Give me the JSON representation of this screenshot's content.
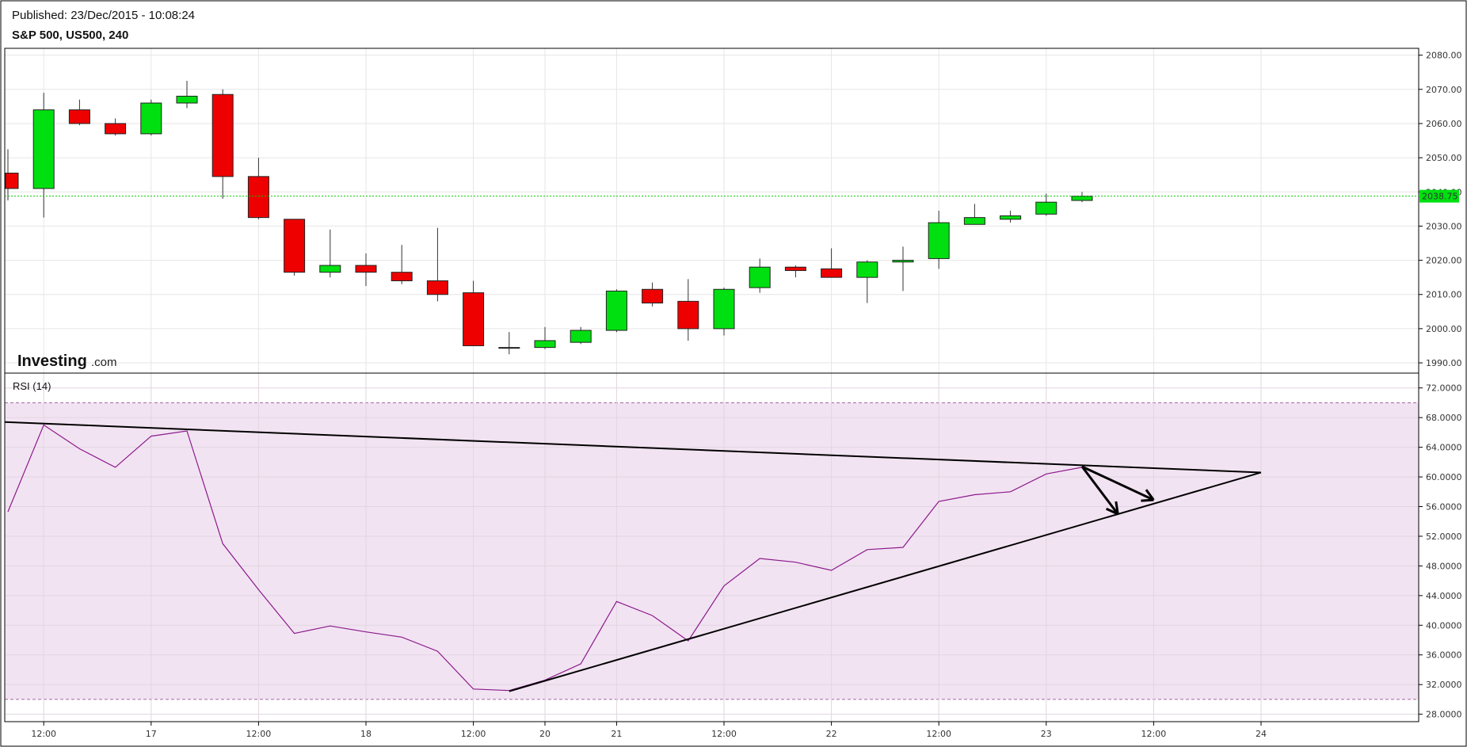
{
  "header": {
    "published": "Published: 23/Dec/2015 - 10:08:24",
    "symbol": "S&P 500, US500, 240"
  },
  "watermark": {
    "text_main": "Investing",
    "text_suffix": ".com"
  },
  "colors": {
    "up": "#00e010",
    "down": "#ee0000",
    "rsi_line": "#8b1a8b",
    "rsi_band": "#f2e3f2",
    "trend_line": "#000000",
    "last_price": "#00cc00"
  },
  "chart_data": [
    {
      "type": "candlestick",
      "title": "S&P 500, US500, 240",
      "ylim": [
        1987,
        2082
      ],
      "yticks": [
        "2080.00",
        "2070.00",
        "2060.00",
        "2050.00",
        "2040.00",
        "2030.00",
        "2020.00",
        "2010.00",
        "2000.00",
        "1990.00"
      ],
      "last_price": "2038.75",
      "x_ticks": [
        "12:00",
        "17",
        "12:00",
        "18",
        "12:00",
        "20",
        "21",
        "12:00",
        "22",
        "12:00",
        "23",
        "12:00",
        "24"
      ],
      "candles": [
        {
          "o": 2045.5,
          "h": 2052.5,
          "l": 2037.5,
          "c": 2041.0
        },
        {
          "o": 2041.0,
          "h": 2069.0,
          "l": 2032.5,
          "c": 2064.0
        },
        {
          "o": 2064.0,
          "h": 2067.0,
          "l": 2059.5,
          "c": 2060.0
        },
        {
          "o": 2060.0,
          "h": 2061.5,
          "l": 2056.5,
          "c": 2057.0
        },
        {
          "o": 2057.0,
          "h": 2067.0,
          "l": 2056.5,
          "c": 2066.0
        },
        {
          "o": 2066.0,
          "h": 2072.5,
          "l": 2064.5,
          "c": 2068.0
        },
        {
          "o": 2068.5,
          "h": 2070.0,
          "l": 2038.0,
          "c": 2044.5
        },
        {
          "o": 2044.5,
          "h": 2050.0,
          "l": 2032.0,
          "c": 2032.5
        },
        {
          "o": 2032.0,
          "h": 2032.0,
          "l": 2015.5,
          "c": 2016.5
        },
        {
          "o": 2016.5,
          "h": 2029.0,
          "l": 2015.0,
          "c": 2018.5
        },
        {
          "o": 2018.5,
          "h": 2022.0,
          "l": 2012.5,
          "c": 2016.5
        },
        {
          "o": 2016.5,
          "h": 2024.5,
          "l": 2013.0,
          "c": 2014.0
        },
        {
          "o": 2014.0,
          "h": 2029.5,
          "l": 2008.0,
          "c": 2010.0
        },
        {
          "o": 2010.5,
          "h": 2014.0,
          "l": 1995.0,
          "c": 1995.0
        },
        {
          "o": 1994.5,
          "h": 1999.0,
          "l": 1992.5,
          "c": 1994.5
        },
        {
          "o": 1994.5,
          "h": 2000.5,
          "l": 1994.0,
          "c": 1996.5
        },
        {
          "o": 1996.0,
          "h": 2000.5,
          "l": 1995.5,
          "c": 1999.5
        },
        {
          "o": 1999.5,
          "h": 2011.5,
          "l": 1999.0,
          "c": 2011.0
        },
        {
          "o": 2011.5,
          "h": 2013.5,
          "l": 2006.5,
          "c": 2007.5
        },
        {
          "o": 2008.0,
          "h": 2014.5,
          "l": 1996.5,
          "c": 2000.0
        },
        {
          "o": 2000.0,
          "h": 2012.0,
          "l": 1998.0,
          "c": 2011.5
        },
        {
          "o": 2012.0,
          "h": 2020.5,
          "l": 2010.5,
          "c": 2018.0
        },
        {
          "o": 2018.0,
          "h": 2018.5,
          "l": 2015.0,
          "c": 2017.0
        },
        {
          "o": 2017.5,
          "h": 2023.5,
          "l": 2015.0,
          "c": 2015.0
        },
        {
          "o": 2015.0,
          "h": 2020.0,
          "l": 2007.5,
          "c": 2019.5
        },
        {
          "o": 2019.5,
          "h": 2024.0,
          "l": 2011.0,
          "c": 2020.0
        },
        {
          "o": 2020.5,
          "h": 2034.5,
          "l": 2017.5,
          "c": 2031.0
        },
        {
          "o": 2030.5,
          "h": 2036.5,
          "l": 2030.5,
          "c": 2032.5
        },
        {
          "o": 2032.0,
          "h": 2034.5,
          "l": 2031.0,
          "c": 2033.0
        },
        {
          "o": 2033.5,
          "h": 2039.5,
          "l": 2033.0,
          "c": 2037.0
        },
        {
          "o": 2037.5,
          "h": 2040.0,
          "l": 2037.0,
          "c": 2038.75
        }
      ]
    },
    {
      "type": "line",
      "title": "RSI (14)",
      "ylim": [
        27,
        74
      ],
      "yticks": [
        "72.0000",
        "68.0000",
        "64.0000",
        "60.0000",
        "56.0000",
        "52.0000",
        "48.0000",
        "44.0000",
        "40.0000",
        "36.0000",
        "32.0000",
        "28.0000"
      ],
      "band": [
        30,
        70
      ],
      "x_ticks": [
        "12:00",
        "17",
        "12:00",
        "18",
        "12:00",
        "20",
        "21",
        "12:00",
        "22",
        "12:00",
        "23",
        "12:00",
        "24"
      ],
      "series": [
        {
          "values": [
            55.3,
            67.0,
            63.8,
            61.3,
            65.5,
            66.2,
            51.0,
            44.8,
            38.9,
            39.9,
            39.1,
            38.4,
            36.5,
            31.4,
            31.2,
            32.6,
            34.8,
            43.2,
            41.3,
            37.9,
            45.3,
            49.0,
            48.5,
            47.4,
            50.2,
            50.5,
            56.7,
            57.6,
            58.0,
            60.4,
            61.3
          ]
        }
      ],
      "trendlines": [
        {
          "from": [
            -1.0,
            67.4
          ],
          "to": [
            35.0,
            60.6
          ]
        },
        {
          "from": [
            14.0,
            31.1
          ],
          "to": [
            35.0,
            60.6
          ]
        }
      ],
      "arrows": [
        {
          "from": [
            30.0,
            61.4
          ],
          "to": [
            31.0,
            55.0
          ]
        },
        {
          "from": [
            30.0,
            61.4
          ],
          "to": [
            32.0,
            56.9
          ]
        }
      ]
    }
  ]
}
